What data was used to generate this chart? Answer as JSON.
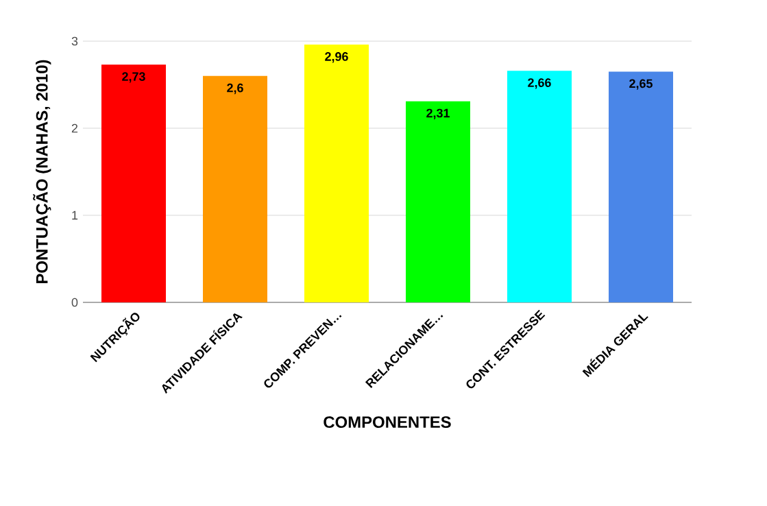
{
  "chart_data": {
    "type": "bar",
    "xlabel": "COMPONENTES",
    "ylabel": "PONTUAÇÃO (NAHAS, 2010)",
    "categories": [
      "NUTRIÇÃO",
      "ATIVIDADE FÍSICA",
      "COMP. PREVEN…",
      "RELACIONAME…",
      "CONT. ESTRESSE",
      "MÉDIA GERAL"
    ],
    "values": [
      2.73,
      2.6,
      2.96,
      2.31,
      2.66,
      2.65
    ],
    "value_labels": [
      "2,73",
      "2,6",
      "2,96",
      "2,31",
      "2,66",
      "2,65"
    ],
    "colors": [
      "#ff0000",
      "#ff9900",
      "#ffff00",
      "#00ff00",
      "#00ffff",
      "#4a86e8"
    ],
    "ylim": [
      0,
      3
    ],
    "yticks": [
      0,
      1,
      2,
      3
    ],
    "grid": "y"
  }
}
